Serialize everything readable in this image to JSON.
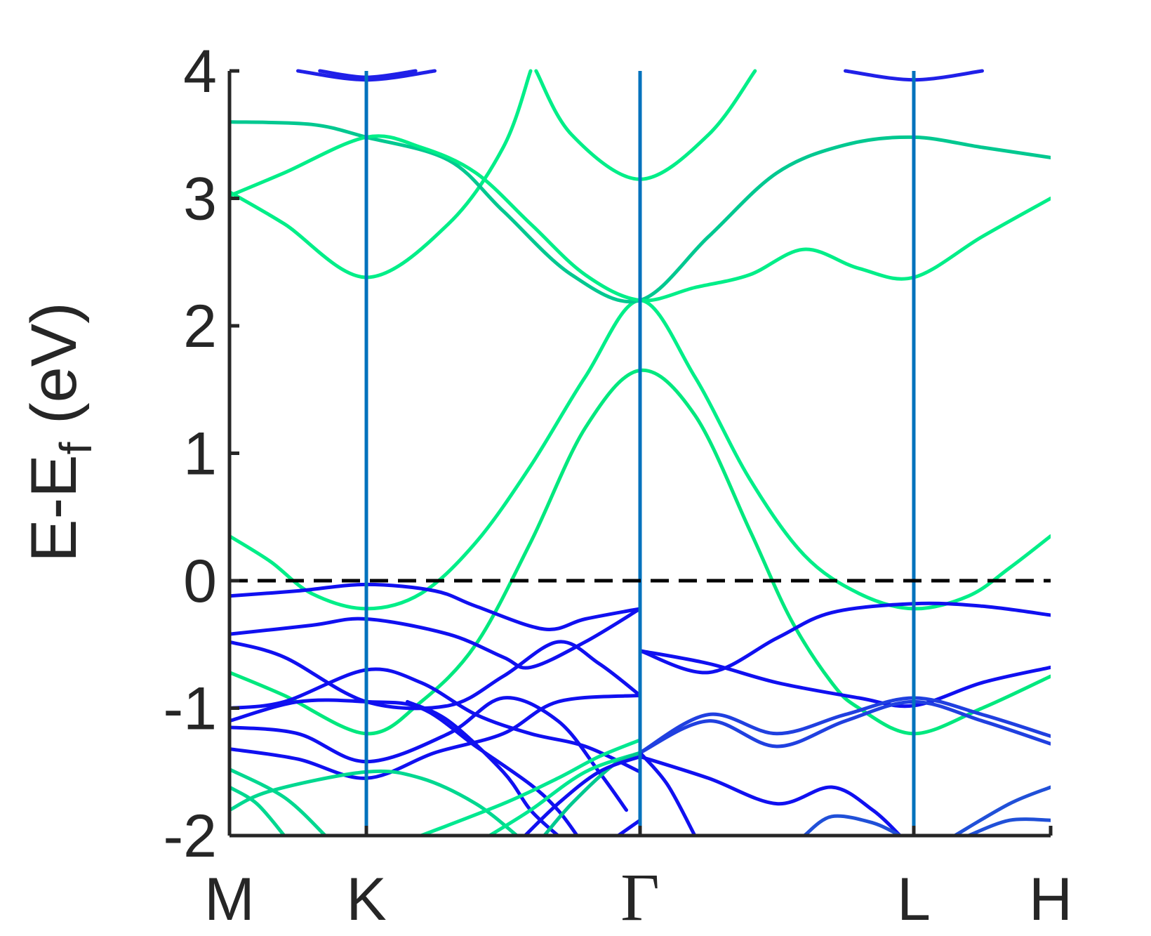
{
  "chart_data": {
    "type": "line",
    "title": "",
    "xlabel": "",
    "ylabel": {
      "prefix": "E-E",
      "subscript": "f",
      "suffix": " (eV)"
    },
    "ylim": [
      -2,
      4
    ],
    "yticks": [
      -2,
      -1,
      0,
      1,
      2,
      3,
      4
    ],
    "ytick_labels": [
      "-2",
      "-1",
      "0",
      "1",
      "2",
      "3",
      "4"
    ],
    "k_path": [
      {
        "label": "M",
        "k": 0.0
      },
      {
        "label": "K",
        "k": 0.5
      },
      {
        "label": "Γ",
        "k": 1.5
      },
      {
        "label": "L",
        "k": 2.5
      },
      {
        "label": "H",
        "k": 3.0
      }
    ],
    "xlim": [
      0,
      3.0
    ],
    "fermi_level": 0,
    "grid": false,
    "legend": "none",
    "colors": {
      "band_a": "#00ff80",
      "band_b": "#0000ff",
      "mixed": "#0072bd",
      "vertical_lines": "#0072bd",
      "fermi_line": "#000000",
      "axes": "#262626"
    },
    "series": [
      {
        "color": "#00ee88",
        "points": [
          [
            0,
            0.35
          ],
          [
            0.15,
            0.15
          ],
          [
            0.3,
            -0.1
          ],
          [
            0.5,
            -0.22
          ],
          [
            0.7,
            -0.1
          ],
          [
            0.9,
            0.3
          ],
          [
            1.1,
            0.9
          ],
          [
            1.3,
            1.6
          ],
          [
            1.5,
            2.2
          ],
          [
            1.7,
            1.6
          ],
          [
            1.9,
            0.8
          ],
          [
            2.1,
            0.2
          ],
          [
            2.3,
            -0.1
          ],
          [
            2.5,
            -0.22
          ],
          [
            2.7,
            -0.12
          ],
          [
            2.85,
            0.1
          ],
          [
            3.0,
            0.35
          ]
        ]
      },
      {
        "color": "#00e87e",
        "points": [
          [
            0,
            -0.72
          ],
          [
            0.2,
            -0.9
          ],
          [
            0.5,
            -1.2
          ],
          [
            0.7,
            -0.95
          ],
          [
            0.9,
            -0.5
          ],
          [
            1.1,
            0.3
          ],
          [
            1.3,
            1.2
          ],
          [
            1.5,
            1.65
          ],
          [
            1.7,
            1.3
          ],
          [
            1.9,
            0.4
          ],
          [
            2.05,
            -0.3
          ],
          [
            2.2,
            -0.8
          ],
          [
            2.3,
            -1.0
          ],
          [
            2.5,
            -1.2
          ],
          [
            2.75,
            -1.0
          ],
          [
            3.0,
            -0.75
          ]
        ]
      },
      {
        "color": "#00ee88",
        "points": [
          [
            0,
            3.05
          ],
          [
            0.2,
            2.8
          ],
          [
            0.5,
            2.38
          ],
          [
            0.8,
            2.8
          ],
          [
            1.0,
            3.4
          ],
          [
            1.1,
            4.0
          ]
        ]
      },
      {
        "color": "#00ee88",
        "points": [
          [
            1.12,
            4.0
          ],
          [
            1.25,
            3.5
          ],
          [
            1.5,
            3.15
          ],
          [
            1.75,
            3.5
          ],
          [
            1.92,
            4.0
          ]
        ]
      },
      {
        "color": "#00c890",
        "points": [
          [
            0,
            3.6
          ],
          [
            0.3,
            3.58
          ],
          [
            0.5,
            3.48
          ],
          [
            0.8,
            3.3
          ],
          [
            1.0,
            2.9
          ],
          [
            1.25,
            2.4
          ],
          [
            1.5,
            2.2
          ],
          [
            1.75,
            2.7
          ],
          [
            2.0,
            3.2
          ],
          [
            2.25,
            3.42
          ],
          [
            2.5,
            3.48
          ],
          [
            2.75,
            3.4
          ],
          [
            3.0,
            3.32
          ]
        ]
      },
      {
        "color": "#00ee88",
        "points": [
          [
            0,
            3.02
          ],
          [
            0.2,
            3.2
          ],
          [
            0.5,
            3.48
          ],
          [
            0.7,
            3.4
          ],
          [
            0.9,
            3.2
          ],
          [
            1.1,
            2.8
          ],
          [
            1.3,
            2.4
          ],
          [
            1.5,
            2.2
          ],
          [
            1.7,
            2.3
          ],
          [
            1.9,
            2.4
          ],
          [
            2.1,
            2.6
          ],
          [
            2.3,
            2.45
          ],
          [
            2.5,
            2.38
          ],
          [
            2.75,
            2.7
          ],
          [
            3.0,
            3.0
          ]
        ]
      },
      {
        "color": "#1010f0",
        "points": [
          [
            0,
            -0.12
          ],
          [
            0.25,
            -0.08
          ],
          [
            0.5,
            -0.03
          ],
          [
            0.75,
            -0.08
          ],
          [
            0.9,
            -0.2
          ],
          [
            1.15,
            -0.38
          ],
          [
            1.3,
            -0.3
          ],
          [
            1.5,
            -0.22
          ]
        ]
      },
      {
        "color": "#1010f0",
        "points": [
          [
            0,
            -0.42
          ],
          [
            0.3,
            -0.35
          ],
          [
            0.5,
            -0.3
          ],
          [
            0.8,
            -0.42
          ],
          [
            1.0,
            -0.6
          ],
          [
            1.1,
            -0.68
          ],
          [
            1.3,
            -0.48
          ],
          [
            1.5,
            -0.22
          ]
        ]
      },
      {
        "color": "#1010f0",
        "points": [
          [
            0,
            -0.48
          ],
          [
            0.2,
            -0.6
          ],
          [
            0.5,
            -0.95
          ],
          [
            0.8,
            -0.98
          ],
          [
            1.0,
            -0.75
          ],
          [
            1.2,
            -0.48
          ],
          [
            1.35,
            -0.65
          ],
          [
            1.5,
            -0.9
          ]
        ]
      },
      {
        "color": "#1010f0",
        "points": [
          [
            0,
            -1.0
          ],
          [
            0.2,
            -0.95
          ],
          [
            0.5,
            -0.7
          ],
          [
            0.7,
            -0.8
          ],
          [
            0.9,
            -1.05
          ],
          [
            1.1,
            -1.2
          ],
          [
            1.3,
            -1.3
          ],
          [
            1.5,
            -1.5
          ]
        ]
      },
      {
        "color": "#1010f0",
        "points": [
          [
            0,
            -1.1
          ],
          [
            0.25,
            -0.95
          ],
          [
            0.5,
            -0.95
          ],
          [
            0.7,
            -1.0
          ],
          [
            0.9,
            -1.3
          ],
          [
            1.1,
            -1.6
          ],
          [
            1.2,
            -1.8
          ],
          [
            1.27,
            -2.0
          ]
        ]
      },
      {
        "color": "#1010f0",
        "points": [
          [
            0,
            -1.15
          ],
          [
            0.25,
            -1.2
          ],
          [
            0.5,
            -1.42
          ],
          [
            0.8,
            -1.2
          ],
          [
            1.0,
            -0.92
          ],
          [
            1.2,
            -1.1
          ],
          [
            1.35,
            -1.5
          ],
          [
            1.45,
            -1.8
          ]
        ]
      },
      {
        "color": "#1010f0",
        "points": [
          [
            0,
            -1.32
          ],
          [
            0.25,
            -1.4
          ],
          [
            0.5,
            -1.55
          ],
          [
            0.75,
            -1.35
          ],
          [
            1.0,
            -1.2
          ],
          [
            1.2,
            -0.95
          ],
          [
            1.5,
            -0.9
          ]
        ]
      },
      {
        "color": "#1010f0",
        "points": [
          [
            0.65,
            -0.95
          ],
          [
            0.8,
            -1.1
          ],
          [
            1.0,
            -1.5
          ],
          [
            1.1,
            -1.8
          ],
          [
            1.2,
            -2.0
          ]
        ]
      },
      {
        "color": "#1010f0",
        "points": [
          [
            1.5,
            -0.55
          ],
          [
            1.75,
            -0.65
          ],
          [
            2.0,
            -0.8
          ],
          [
            2.3,
            -0.92
          ],
          [
            2.5,
            -0.98
          ],
          [
            2.75,
            -0.8
          ],
          [
            3.0,
            -0.68
          ]
        ]
      },
      {
        "color": "#1010f0",
        "points": [
          [
            1.5,
            -0.55
          ],
          [
            1.75,
            -0.72
          ],
          [
            2.0,
            -0.45
          ],
          [
            2.2,
            -0.25
          ],
          [
            2.5,
            -0.18
          ],
          [
            2.75,
            -0.2
          ],
          [
            3.0,
            -0.27
          ]
        ]
      },
      {
        "color": "#2040e0",
        "points": [
          [
            1.5,
            -1.35
          ],
          [
            1.75,
            -1.05
          ],
          [
            2.0,
            -1.2
          ],
          [
            2.25,
            -1.05
          ],
          [
            2.5,
            -0.92
          ],
          [
            2.75,
            -1.05
          ],
          [
            3.0,
            -1.22
          ]
        ]
      },
      {
        "color": "#2040e0",
        "points": [
          [
            1.5,
            -1.35
          ],
          [
            1.75,
            -1.1
          ],
          [
            2.0,
            -1.3
          ],
          [
            2.25,
            -1.1
          ],
          [
            2.5,
            -0.95
          ],
          [
            2.75,
            -1.1
          ],
          [
            3.0,
            -1.28
          ]
        ]
      },
      {
        "color": "#1010f0",
        "points": [
          [
            1.5,
            -1.38
          ],
          [
            1.75,
            -1.55
          ],
          [
            2.0,
            -1.75
          ],
          [
            2.2,
            -1.62
          ],
          [
            2.35,
            -1.8
          ],
          [
            2.45,
            -2.0
          ]
        ]
      },
      {
        "color": "#1010f0",
        "points": [
          [
            1.5,
            -1.35
          ],
          [
            1.6,
            -1.6
          ],
          [
            1.7,
            -2.0
          ]
        ]
      },
      {
        "color": "#2050d8",
        "points": [
          [
            2.1,
            -2.0
          ],
          [
            2.2,
            -1.85
          ],
          [
            2.35,
            -1.9
          ],
          [
            2.45,
            -2.0
          ]
        ]
      },
      {
        "color": "#2050d8",
        "points": [
          [
            2.65,
            -2.0
          ],
          [
            2.85,
            -1.75
          ],
          [
            3.0,
            -1.62
          ]
        ]
      },
      {
        "color": "#2050d8",
        "points": [
          [
            2.7,
            -2.0
          ],
          [
            2.85,
            -1.88
          ],
          [
            3.0,
            -1.88
          ]
        ]
      },
      {
        "color": "#00d890",
        "points": [
          [
            0,
            -1.48
          ],
          [
            0.2,
            -1.7
          ],
          [
            0.35,
            -2.0
          ]
        ]
      },
      {
        "color": "#00d890",
        "points": [
          [
            0,
            -1.8
          ],
          [
            0.15,
            -1.65
          ],
          [
            0.5,
            -1.5
          ],
          [
            0.7,
            -1.55
          ],
          [
            0.9,
            -1.75
          ],
          [
            1.05,
            -2.0
          ]
        ]
      },
      {
        "color": "#00d890",
        "points": [
          [
            0,
            -1.62
          ],
          [
            0.1,
            -1.75
          ],
          [
            0.2,
            -2.0
          ]
        ]
      },
      {
        "color": "#00e890",
        "points": [
          [
            0.7,
            -2.0
          ],
          [
            1.0,
            -1.75
          ],
          [
            1.2,
            -1.55
          ],
          [
            1.35,
            -1.38
          ],
          [
            1.5,
            -1.25
          ]
        ]
      },
      {
        "color": "#00e890",
        "points": [
          [
            0.95,
            -2.0
          ],
          [
            1.1,
            -1.8
          ],
          [
            1.3,
            -1.5
          ],
          [
            1.5,
            -1.35
          ]
        ]
      },
      {
        "color": "#00c890",
        "points": [
          [
            1.15,
            -2.0
          ],
          [
            1.25,
            -1.75
          ],
          [
            1.4,
            -1.45
          ],
          [
            1.5,
            -1.35
          ]
        ]
      },
      {
        "color": "#1010f0",
        "points": [
          [
            1.08,
            -2.0
          ],
          [
            1.2,
            -1.75
          ],
          [
            1.35,
            -1.5
          ],
          [
            1.5,
            -1.38
          ]
        ]
      },
      {
        "color": "#1010f0",
        "points": [
          [
            1.42,
            -2.0
          ],
          [
            1.5,
            -1.88
          ]
        ]
      },
      {
        "color": "#2020e8",
        "points": [
          [
            0.25,
            4.0
          ],
          [
            0.5,
            3.93
          ],
          [
            0.75,
            4.0
          ]
        ]
      },
      {
        "color": "#2020e8",
        "points": [
          [
            0.33,
            4.0
          ],
          [
            0.5,
            3.95
          ],
          [
            0.68,
            4.0
          ]
        ]
      },
      {
        "color": "#2020e8",
        "points": [
          [
            2.25,
            4.0
          ],
          [
            2.5,
            3.93
          ],
          [
            2.75,
            4.0
          ]
        ]
      }
    ]
  }
}
